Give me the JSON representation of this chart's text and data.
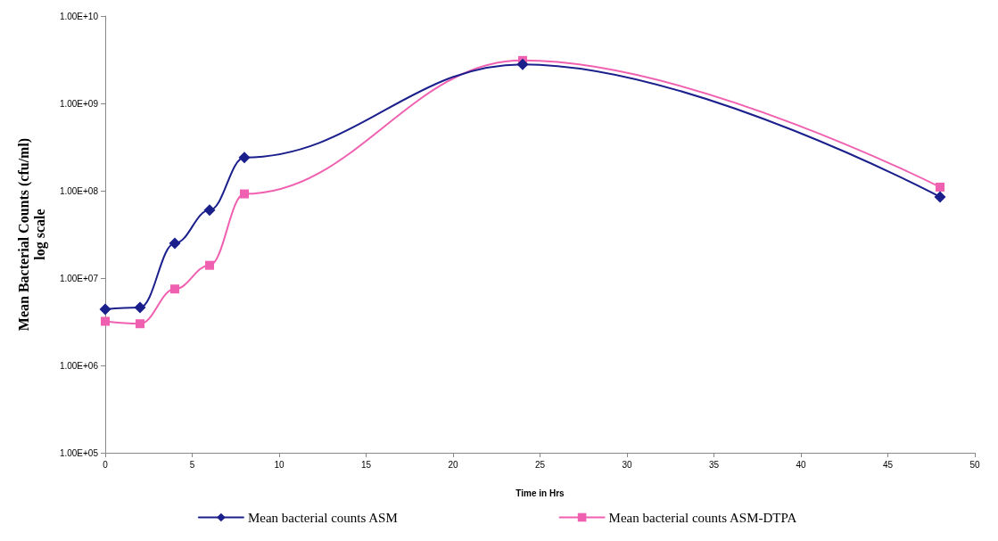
{
  "chart_data": {
    "type": "line",
    "xlabel": "Time in Hrs",
    "ylabel": "Mean Bacterial Counts (cfu/ml)\nlog scale",
    "x": [
      0,
      2,
      4,
      6,
      8,
      24,
      48
    ],
    "series": [
      {
        "name": "Mean bacterial counts ASM",
        "color": "#1a1f8c",
        "marker": "diamond",
        "values": [
          4400000,
          4600000,
          25000000,
          60000000,
          240000000,
          2800000000,
          85000000
        ]
      },
      {
        "name": "Mean bacterial counts ASM-DTPA",
        "color": "#f060b0",
        "marker": "square",
        "values": [
          3200000,
          3000000,
          7500000,
          14000000,
          92000000,
          3100000000,
          110000000
        ]
      }
    ],
    "log": "y",
    "xlim": [
      0,
      50
    ],
    "xticks": [
      0,
      5,
      10,
      15,
      20,
      25,
      30,
      35,
      40,
      45,
      50
    ],
    "ylim": [
      100000,
      10000000000
    ],
    "yticks": [
      {
        "value": 100000,
        "label": "1.00E+05"
      },
      {
        "value": 1000000,
        "label": "1.00E+06"
      },
      {
        "value": 10000000,
        "label": "1.00E+07"
      },
      {
        "value": 100000000,
        "label": "1.00E+08"
      },
      {
        "value": 1000000000,
        "label": "1.00E+09"
      },
      {
        "value": 10000000000,
        "label": "1.00E+10"
      }
    ],
    "grid": false,
    "legend": "bottom",
    "line_style": "solid"
  }
}
